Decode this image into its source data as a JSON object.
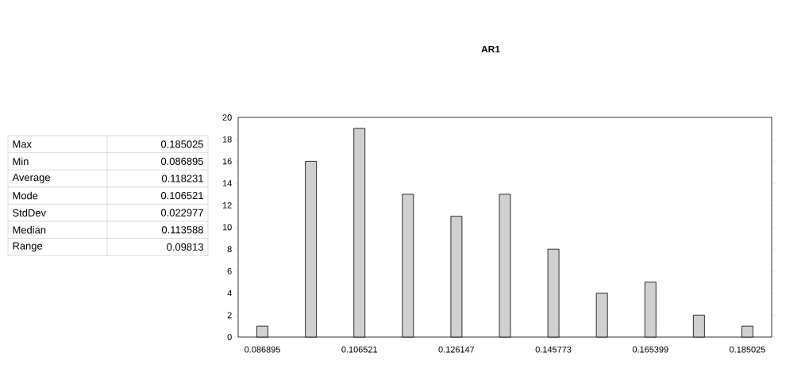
{
  "chart_data": {
    "type": "bar",
    "title": "AR1",
    "categories": [
      "0.086895",
      null,
      "0.106521",
      null,
      "0.126147",
      null,
      "0.145773",
      null,
      "0.165399",
      null,
      "0.185025"
    ],
    "values": [
      1,
      16,
      19,
      13,
      11,
      13,
      8,
      4,
      5,
      2,
      1
    ],
    "color": "#d0d0d0",
    "ylim": [
      0,
      20
    ],
    "yticks": [
      0,
      2,
      4,
      6,
      8,
      10,
      12,
      14,
      16,
      18,
      20
    ],
    "grid": false,
    "annotations": [
      "Max",
      "0.185025",
      "Min",
      "0.086895",
      "Average",
      "0.118231",
      "Mode",
      "0.106521",
      "StdDev",
      "0.022977",
      "Median",
      "0.113588",
      "Range",
      "0.09813"
    ]
  }
}
